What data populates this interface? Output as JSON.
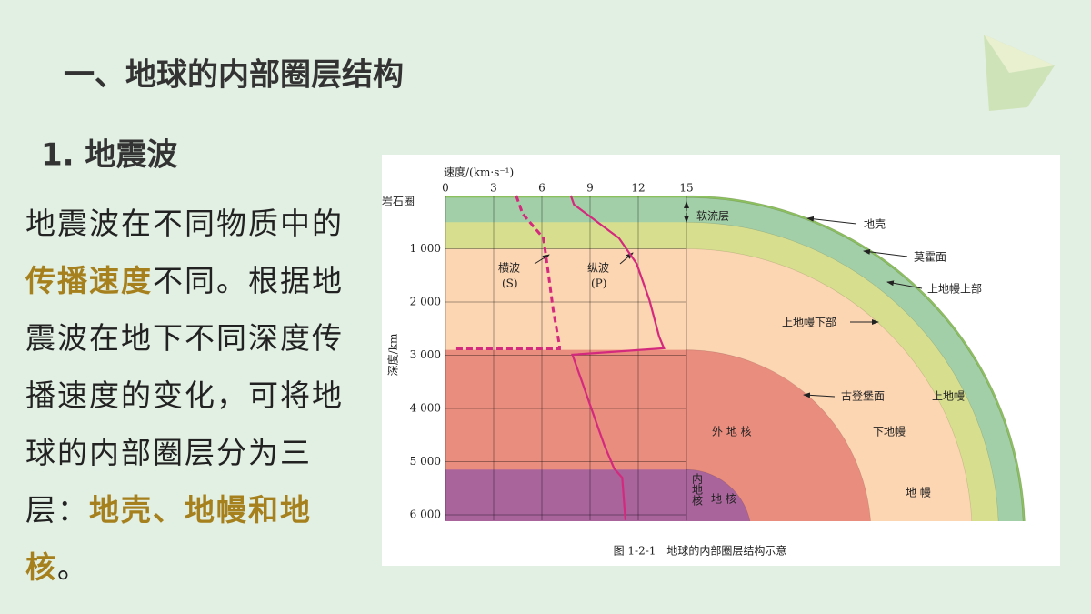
{
  "slide": {
    "title": "一、地球的内部圈层结构",
    "subtitle": "1. 地震波",
    "paragraph": [
      {
        "text": "地震波在不同物质中的",
        "highlight": false
      },
      {
        "text": "传播速度",
        "highlight": true
      },
      {
        "text": "不同。根据地震波在地下不同深度传播速度的变化，可将地球的内部圈层分为三层：",
        "highlight": false
      },
      {
        "text": "地壳、地幔和地核",
        "highlight": true
      },
      {
        "text": "。",
        "highlight": false
      }
    ],
    "highlight_color": "#a5801c"
  },
  "figure": {
    "x_label": "速度/(km·s⁻¹)",
    "y_label": "深度/km",
    "top_label": "岩石圈",
    "xlim": [
      0,
      15
    ],
    "xticks": [
      0,
      3,
      6,
      9,
      12,
      15
    ],
    "ylim": [
      0,
      6000
    ],
    "yticks": [
      {
        "value": 1000,
        "label": "1 000"
      },
      {
        "value": 2000,
        "label": "2 000"
      },
      {
        "value": 3000,
        "label": "3 000"
      },
      {
        "value": 4000,
        "label": "4 000"
      },
      {
        "value": 5000,
        "label": "5 000"
      },
      {
        "value": 6000,
        "label": "6 000"
      }
    ],
    "radius": 6371,
    "layers": [
      {
        "depth": 0,
        "color": "#8cbf5e"
      },
      {
        "depth": 40,
        "color": "#a3cfa8"
      },
      {
        "depth": 500,
        "color": "#d7df8f"
      },
      {
        "depth": 1000,
        "color": "#fcd5b2"
      },
      {
        "depth": 2900,
        "color": "#e98d7e"
      },
      {
        "depth": 5150,
        "color": "#a8649b"
      }
    ],
    "series": [
      {
        "name": "横波",
        "symbol": "(S)",
        "color": "#d42a7e",
        "dashed": true,
        "x": [
          4.4,
          4.8,
          6.1,
          6.4,
          6.7,
          7.1,
          7.1,
          0.5
        ],
        "y": [
          0,
          340,
          800,
          1450,
          2140,
          2820,
          2880,
          2880
        ]
      },
      {
        "name": "纵波",
        "symbol": "(P)",
        "color": "#d42a7e",
        "dashed": false,
        "x": [
          7.8,
          8.0,
          10.8,
          11.9,
          12.7,
          13.3,
          13.6,
          7.9,
          8.5,
          9.3,
          9.9,
          10.5,
          11.0,
          11.2
        ],
        "y": [
          0,
          170,
          800,
          1280,
          1970,
          2650,
          2870,
          2990,
          3500,
          4190,
          4700,
          5130,
          5300,
          6100
        ]
      }
    ],
    "labels": {
      "asthenosphere": "软流层",
      "crust": "地壳",
      "moho": "莫霍面",
      "upper_mantle_top": "上地幔上部",
      "upper_mantle_bottom": "上地幔下部",
      "gutenberg": "古登堡面",
      "upper_mantle": "上地幔",
      "lower_mantle": "下地幔",
      "outer_core": "外 地 核",
      "inner_core": "内地核",
      "core": "地 核",
      "mantle": "地 幔"
    },
    "caption": "图 1-2-1　地球的内部圈层结构示意"
  }
}
